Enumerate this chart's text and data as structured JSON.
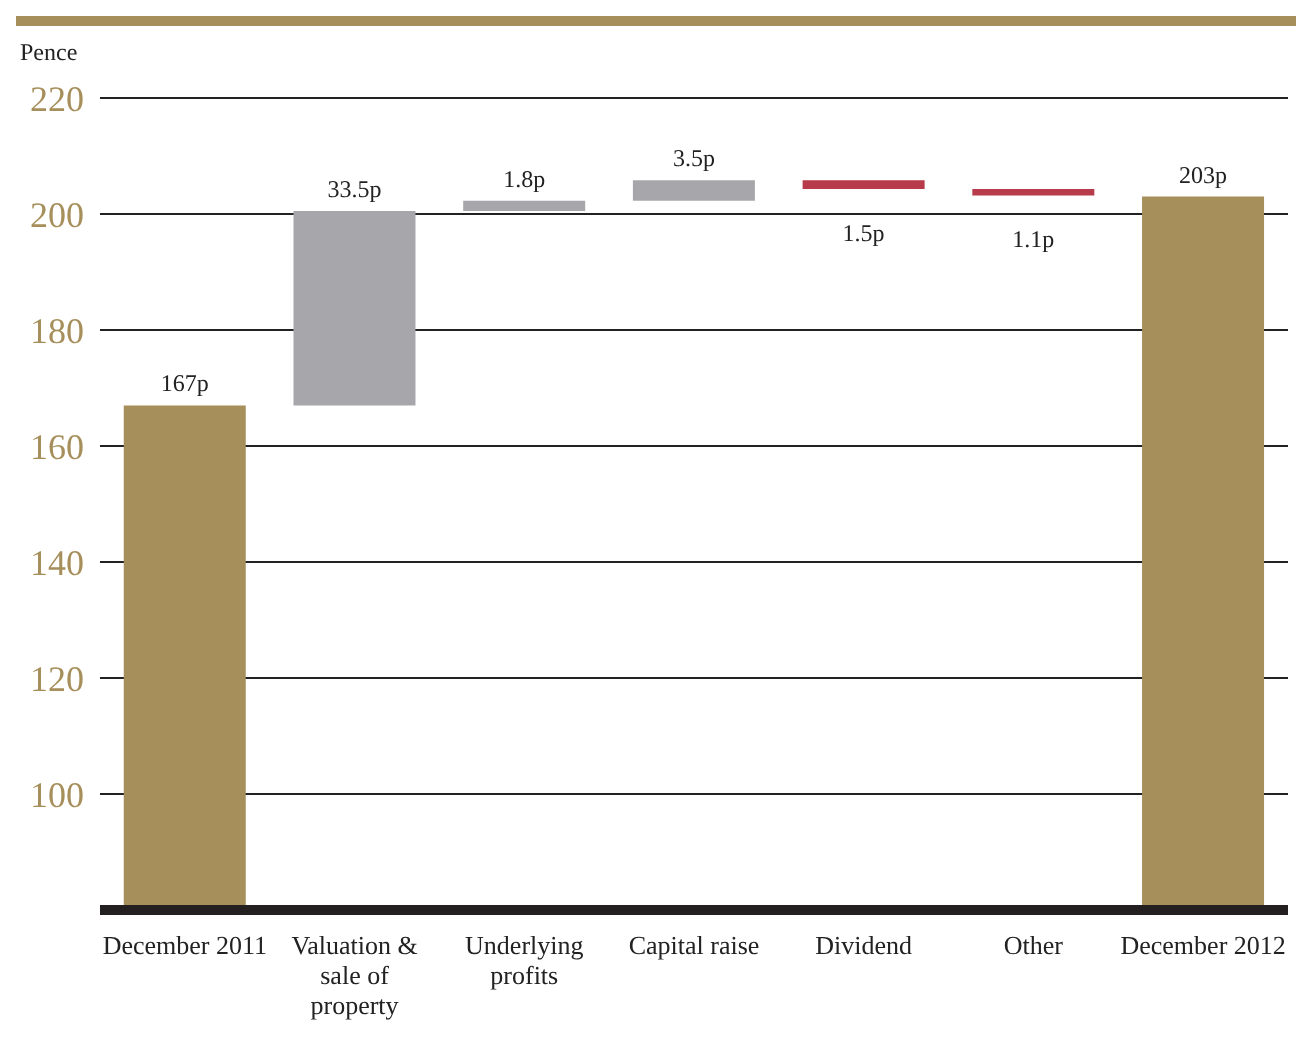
{
  "chart_data": {
    "type": "bar",
    "ylabel": "Pence",
    "categories": [
      "December 2011",
      "Valuation & sale of property",
      "Underlying profits",
      "Capital raise",
      "Dividend",
      "Other",
      "December 2012"
    ],
    "values": [
      167,
      33.5,
      1.8,
      3.5,
      -1.5,
      -1.1,
      203
    ],
    "base": [
      null,
      167,
      200.5,
      202.3,
      205.8,
      204.3,
      null
    ],
    "colors": [
      "#a68f5b",
      "#a7a7ab",
      "#a7a7ab",
      "#a7a7ab",
      "#b83b4b",
      "#b83b4b",
      "#a68f5b"
    ],
    "value_labels": [
      "167p",
      "33.5p",
      "1.8p",
      "3.5p",
      "1.5p",
      "1.1p",
      "203p"
    ],
    "ylim": [
      80,
      220
    ],
    "yticks": [
      {
        "value": 80,
        "label": null
      },
      100,
      120,
      140,
      160,
      180,
      200,
      220
    ],
    "grid": "y",
    "legend": false
  }
}
